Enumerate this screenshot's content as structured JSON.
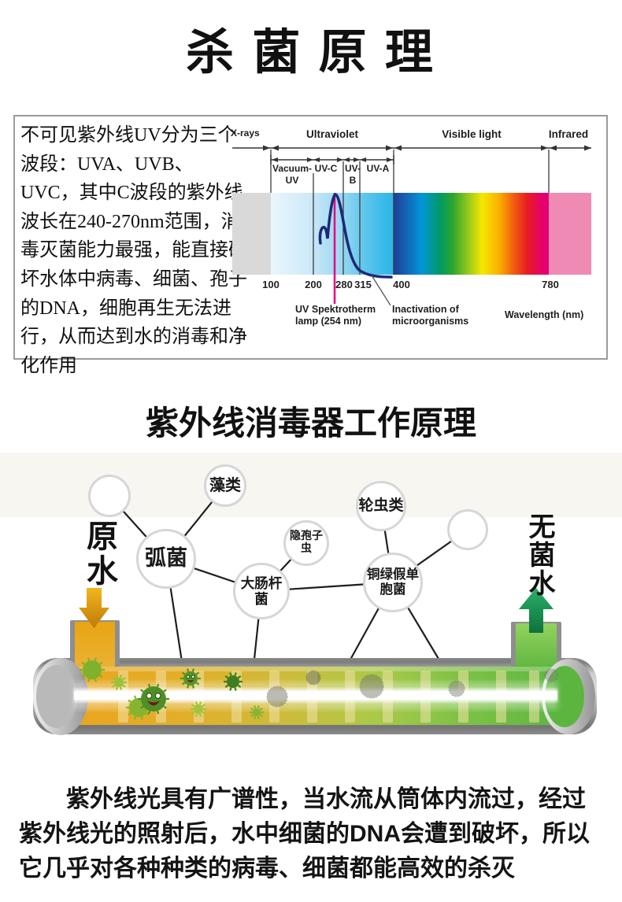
{
  "page_title": "杀 菌 原 理",
  "info_box": {
    "description": "不可见紫外线UV分为三个波段：UVA、UVB、UVC，其中C波段的紫外线波长在240-270nm范围，消毒灭菌能力最强，能直接破坏水体中病毒、细菌、孢子的DNA，细胞再生无法进行，从而达到水的消毒和净化作用"
  },
  "spectrum": {
    "regions": {
      "xrays": "X-rays",
      "uv": "Ultraviolet",
      "visible": "Visible light",
      "infrared": "Infrared"
    },
    "sub_bands": {
      "vacuum": "Vacuum-UV",
      "uvc": "UV-C",
      "uvb": "UV-B",
      "uva": "UV-A"
    },
    "ticks": [
      "100",
      "200",
      "280",
      "315",
      "400",
      "780"
    ],
    "lamp_caption": "UV Spektrotherm lamp (254 nm)",
    "inactivation_caption": "Inactivation of microorganisms",
    "axis_caption": "Wavelength (nm)",
    "colors": {
      "lamp_line": "#e6007e",
      "xray_block": "#d9d9d9",
      "infrared_block": "#ef8ab4",
      "curve": "#1b2a78"
    }
  },
  "diagram": {
    "title": "紫外线消毒器工作原理",
    "inlet_label": "原水",
    "outlet_label": "无菌水",
    "inlet_arrow_icon": "arrow-down",
    "outlet_arrow_icon": "arrow-up",
    "organisms": {
      "algae": "藻类",
      "vibrio": "弧菌",
      "cryptosporidium": "隐孢子虫",
      "ecoli": "大肠杆菌",
      "rotifers": "轮虫类",
      "pseudomonas": "铜绿假单胞菌"
    },
    "colors": {
      "inlet_arrow": "#d9880f",
      "outlet_arrow": "#1c9b56",
      "raw_water": "#eaa61e",
      "clean_water": "#5eb741"
    }
  },
  "footer_paragraph": "紫外线光具有广谱性，当水流从筒体内流过，经过紫外线光的照射后，水中细菌的DNA会遭到破坏，所以它几乎对各种种类的病毒、细菌都能高效的杀灭"
}
